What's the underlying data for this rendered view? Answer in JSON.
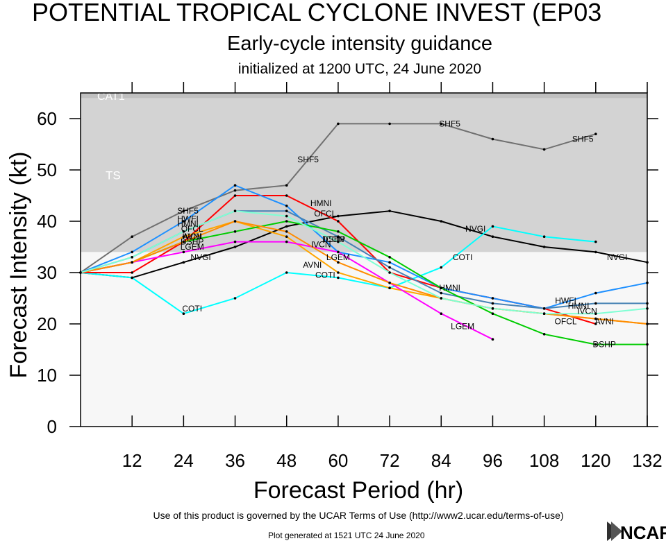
{
  "title": "POTENTIAL TROPICAL CYCLONE INVEST (EP03",
  "subtitle": "Early-cycle intensity guidance",
  "init_line": "initialized at 1200 UTC, 24 June 2020",
  "footer_terms": "Use of this product is governed by the UCAR Terms of Use (http://www2.ucar.edu/terms-of-use)",
  "footer_generated": "Plot generated at 1521 UTC   24 June 2020",
  "logo_text": "NCAR",
  "chart_data": {
    "type": "line",
    "xlabel": "Forecast Period (hr)",
    "ylabel": "Forecast Intensity (kt)",
    "xlim": [
      0,
      132
    ],
    "ylim": [
      0,
      65
    ],
    "xticks": [
      12,
      24,
      36,
      48,
      60,
      72,
      84,
      96,
      108,
      120,
      132
    ],
    "yticks": [
      0,
      10,
      20,
      30,
      40,
      50,
      60
    ],
    "bands": [
      {
        "label": "TS",
        "from": 34,
        "to": 64,
        "color": "#d3d3d3"
      },
      {
        "label": "CAT1",
        "from": 64,
        "to": 83,
        "color": "#c0c0c0"
      }
    ],
    "below_color": "#f7f7f7",
    "series": [
      {
        "name": "SHF5",
        "color": "#707070",
        "points": [
          [
            0,
            30
          ],
          [
            12,
            37
          ],
          [
            24,
            42
          ],
          [
            36,
            46
          ],
          [
            48,
            47
          ],
          [
            60,
            59
          ],
          [
            72,
            59
          ],
          [
            84,
            59
          ],
          [
            96,
            56
          ],
          [
            108,
            54
          ],
          [
            120,
            57
          ]
        ],
        "labels": [
          [
            25,
            42
          ],
          [
            53,
            52
          ],
          [
            86,
            59
          ],
          [
            117,
            56
          ]
        ]
      },
      {
        "name": "NVGI",
        "color": "#000000",
        "points": [
          [
            0,
            30
          ],
          [
            12,
            29
          ],
          [
            24,
            32
          ],
          [
            36,
            35
          ],
          [
            48,
            39
          ],
          [
            60,
            41
          ],
          [
            72,
            42
          ],
          [
            84,
            40
          ],
          [
            96,
            37
          ],
          [
            108,
            35
          ],
          [
            120,
            34
          ],
          [
            132,
            32
          ]
        ],
        "labels": [
          [
            28,
            33
          ],
          [
            92,
            38.5
          ],
          [
            125,
            33
          ]
        ]
      },
      {
        "name": "COTI",
        "color": "#00ffff",
        "points": [
          [
            0,
            30
          ],
          [
            12,
            29
          ],
          [
            24,
            22
          ],
          [
            36,
            25
          ],
          [
            48,
            30
          ],
          [
            60,
            29
          ],
          [
            72,
            27
          ],
          [
            84,
            31
          ],
          [
            96,
            39
          ],
          [
            108,
            37
          ],
          [
            120,
            36
          ]
        ],
        "labels": [
          [
            26,
            23
          ],
          [
            57,
            29.5
          ],
          [
            89,
            33
          ]
        ]
      },
      {
        "name": "HMNI",
        "color": "#ff0000",
        "points": [
          [
            0,
            30
          ],
          [
            12,
            30
          ],
          [
            24,
            36
          ],
          [
            36,
            45
          ],
          [
            48,
            45
          ],
          [
            60,
            40
          ],
          [
            72,
            30
          ],
          [
            84,
            27
          ],
          [
            96,
            25
          ],
          [
            108,
            23
          ],
          [
            120,
            20
          ]
        ],
        "labels": [
          [
            25,
            39.5
          ],
          [
            56,
            43.5
          ],
          [
            86,
            27
          ],
          [
            116,
            23.5
          ]
        ]
      },
      {
        "name": "HWFI",
        "color": "#1e90ff",
        "points": [
          [
            0,
            30
          ],
          [
            12,
            34
          ],
          [
            24,
            40
          ],
          [
            36,
            47
          ],
          [
            48,
            43
          ],
          [
            60,
            34
          ],
          [
            72,
            32
          ],
          [
            84,
            27
          ],
          [
            96,
            25
          ],
          [
            108,
            23
          ],
          [
            120,
            26
          ],
          [
            132,
            28
          ]
        ],
        "labels": [
          [
            25,
            40.5
          ],
          [
            113,
            24.5
          ]
        ]
      },
      {
        "name": "OFCL",
        "color": "#ffa500",
        "points": [
          [
            0,
            30
          ],
          [
            12,
            32
          ],
          [
            24,
            37
          ],
          [
            36,
            40
          ],
          [
            48,
            37
          ],
          [
            60,
            30
          ],
          [
            72,
            27
          ],
          [
            84,
            25
          ],
          [
            96,
            23
          ],
          [
            108,
            22
          ],
          [
            120,
            21
          ],
          [
            132,
            20
          ]
        ],
        "labels": [
          [
            26,
            38.5
          ],
          [
            57,
            41.5
          ],
          [
            113,
            20.5
          ]
        ]
      },
      {
        "name": "IVCN",
        "color": "#4682b4",
        "points": [
          [
            0,
            30
          ],
          [
            12,
            33
          ],
          [
            24,
            38
          ],
          [
            36,
            42
          ],
          [
            48,
            42
          ],
          [
            60,
            37
          ],
          [
            72,
            31
          ],
          [
            84,
            26
          ],
          [
            96,
            24
          ],
          [
            108,
            23
          ],
          [
            120,
            24
          ],
          [
            132,
            24
          ]
        ],
        "labels": [
          [
            26,
            37
          ],
          [
            56,
            35.5
          ],
          [
            118,
            22.5
          ]
        ]
      },
      {
        "name": "DSHP",
        "color": "#00cc00",
        "points": [
          [
            0,
            30
          ],
          [
            12,
            32
          ],
          [
            24,
            36
          ],
          [
            36,
            38
          ],
          [
            48,
            40
          ],
          [
            60,
            38
          ],
          [
            72,
            33
          ],
          [
            84,
            27
          ],
          [
            96,
            22
          ],
          [
            108,
            18
          ],
          [
            120,
            16
          ],
          [
            132,
            16
          ]
        ],
        "labels": [
          [
            26,
            36
          ],
          [
            59,
            36.5
          ],
          [
            122,
            16
          ]
        ]
      },
      {
        "name": "LGEM",
        "color": "#ff00ff",
        "points": [
          [
            0,
            30
          ],
          [
            12,
            32
          ],
          [
            24,
            34
          ],
          [
            36,
            36
          ],
          [
            48,
            36
          ],
          [
            60,
            34
          ],
          [
            72,
            28
          ],
          [
            84,
            22
          ],
          [
            96,
            17
          ]
        ],
        "labels": [
          [
            26,
            35
          ],
          [
            60,
            33
          ],
          [
            89,
            19.5
          ]
        ]
      },
      {
        "name": "AVNI",
        "color": "#ff8c00",
        "points": [
          [
            0,
            30
          ],
          [
            12,
            32
          ],
          [
            24,
            36
          ],
          [
            36,
            40
          ],
          [
            48,
            38
          ],
          [
            60,
            32
          ],
          [
            72,
            28
          ],
          [
            84,
            25
          ],
          [
            96,
            23
          ],
          [
            108,
            22
          ],
          [
            120,
            21
          ],
          [
            132,
            20
          ]
        ],
        "labels": [
          [
            26,
            37
          ],
          [
            54,
            31.5
          ],
          [
            122,
            20.5
          ]
        ]
      },
      {
        "name": "ICON",
        "color": "#7fffd4",
        "points": [
          [
            0,
            30
          ],
          [
            12,
            33
          ],
          [
            24,
            38
          ],
          [
            36,
            42
          ],
          [
            48,
            41
          ],
          [
            60,
            36
          ],
          [
            72,
            30
          ],
          [
            84,
            25
          ],
          [
            96,
            23
          ],
          [
            108,
            22
          ],
          [
            120,
            22
          ],
          [
            132,
            23
          ]
        ],
        "labels": [
          [
            59,
            36.5
          ]
        ]
      }
    ]
  }
}
